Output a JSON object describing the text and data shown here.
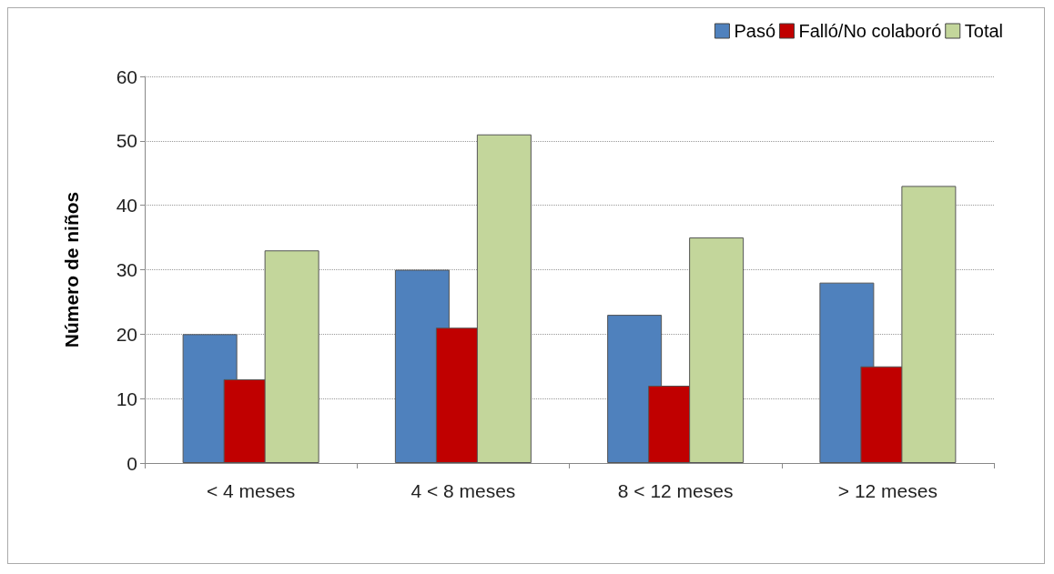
{
  "chart_data": {
    "type": "bar",
    "ylabel": "Número de niños",
    "categories": [
      "< 4 meses",
      "4 < 8 meses",
      "8 < 12 meses",
      "> 12 meses"
    ],
    "series": [
      {
        "name": "Pasó",
        "color": "#4f81bd",
        "values": [
          20,
          30,
          23,
          28
        ]
      },
      {
        "name": "Falló/No colaboró",
        "color": "#c00000",
        "values": [
          13,
          21,
          12,
          15
        ]
      },
      {
        "name": "Total",
        "color": "#c3d69b",
        "values": [
          33,
          51,
          35,
          43
        ]
      }
    ],
    "ylim": [
      0,
      60
    ],
    "yticks": [
      0,
      10,
      20,
      30,
      40,
      50,
      60
    ],
    "grid": "y",
    "legend": "top right"
  }
}
